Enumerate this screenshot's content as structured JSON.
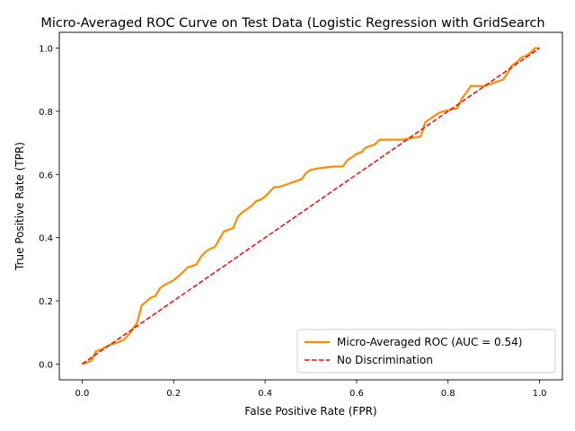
{
  "chart_data": {
    "type": "line",
    "title": "Micro-Averaged ROC Curve on Test Data (Logistic Regression with GridSearch",
    "xlabel": "False Positive Rate (FPR)",
    "ylabel": "True Positive Rate (TPR)",
    "xlim": [
      -0.05,
      1.05
    ],
    "ylim": [
      -0.05,
      1.05
    ],
    "xticks": [
      0.0,
      0.2,
      0.4,
      0.6,
      0.8,
      1.0
    ],
    "xtick_labels": [
      "0.0",
      "0.2",
      "0.4",
      "0.6",
      "0.8",
      "1.0"
    ],
    "yticks": [
      0.0,
      0.2,
      0.4,
      0.6,
      0.8,
      1.0
    ],
    "ytick_labels": [
      "0.0",
      "0.2",
      "0.4",
      "0.6",
      "0.8",
      "1.0"
    ],
    "grid": false,
    "legend_position": "lower-right",
    "series": [
      {
        "name": "Micro-Averaged ROC (AUC = 0.54)",
        "color": "#ff8c00",
        "style": "solid",
        "x": [
          0.0,
          0.02,
          0.03,
          0.04,
          0.06,
          0.07,
          0.09,
          0.1,
          0.11,
          0.12,
          0.13,
          0.15,
          0.16,
          0.17,
          0.18,
          0.2,
          0.22,
          0.23,
          0.25,
          0.26,
          0.27,
          0.28,
          0.29,
          0.3,
          0.31,
          0.33,
          0.34,
          0.35,
          0.36,
          0.37,
          0.38,
          0.39,
          0.4,
          0.41,
          0.42,
          0.43,
          0.45,
          0.47,
          0.48,
          0.49,
          0.5,
          0.52,
          0.55,
          0.57,
          0.58,
          0.59,
          0.6,
          0.61,
          0.62,
          0.64,
          0.65,
          0.66,
          0.7,
          0.74,
          0.75,
          0.76,
          0.78,
          0.79,
          0.82,
          0.83,
          0.84,
          0.85,
          0.88,
          0.9,
          0.92,
          0.93,
          0.94,
          0.95,
          0.96,
          0.97,
          0.98,
          0.99,
          1.0
        ],
        "y": [
          0.0,
          0.01,
          0.04,
          0.045,
          0.06,
          0.065,
          0.075,
          0.09,
          0.11,
          0.13,
          0.185,
          0.21,
          0.215,
          0.24,
          0.25,
          0.265,
          0.29,
          0.305,
          0.315,
          0.34,
          0.355,
          0.365,
          0.37,
          0.395,
          0.42,
          0.43,
          0.465,
          0.48,
          0.49,
          0.5,
          0.515,
          0.52,
          0.53,
          0.545,
          0.56,
          0.56,
          0.57,
          0.58,
          0.585,
          0.605,
          0.615,
          0.62,
          0.625,
          0.625,
          0.645,
          0.655,
          0.665,
          0.67,
          0.685,
          0.695,
          0.71,
          0.71,
          0.71,
          0.72,
          0.765,
          0.775,
          0.795,
          0.8,
          0.81,
          0.84,
          0.86,
          0.88,
          0.88,
          0.89,
          0.9,
          0.92,
          0.945,
          0.955,
          0.97,
          0.975,
          0.985,
          1.0,
          1.0
        ]
      },
      {
        "name": "No Discrimination",
        "color": "#ff0000",
        "style": "dashed",
        "x": [
          0.0,
          1.0
        ],
        "y": [
          0.0,
          1.0
        ]
      }
    ]
  }
}
